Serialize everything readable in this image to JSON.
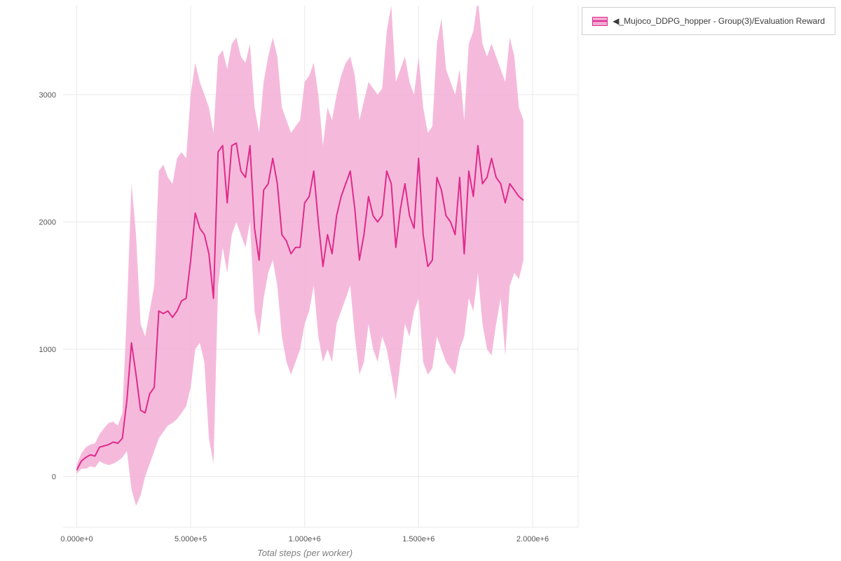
{
  "legend": {
    "label": "◀_Mujoco_DDPG_hopper - Group(3)/Evaluation Reward"
  },
  "chart_data": {
    "type": "line",
    "title": "",
    "xlabel": "Total steps (per worker)",
    "ylabel": "",
    "grid": true,
    "legend_position": "top-right",
    "xlim": [
      -60000,
      2200000
    ],
    "ylim": [
      -400,
      3700
    ],
    "x_ticks": [
      {
        "value": 0,
        "label": "0.000e+0"
      },
      {
        "value": 500000,
        "label": "5.000e+5"
      },
      {
        "value": 1000000,
        "label": "1.000e+6"
      },
      {
        "value": 1500000,
        "label": "1.500e+6"
      },
      {
        "value": 2000000,
        "label": "2.000e+6"
      }
    ],
    "y_ticks": [
      {
        "value": 0,
        "label": "0"
      },
      {
        "value": 1000,
        "label": "1000"
      },
      {
        "value": 2000,
        "label": "2000"
      },
      {
        "value": 3000,
        "label": "3000"
      }
    ],
    "colors": {
      "line": "#e02a8d",
      "band": "#f2a9d2",
      "grid": "#e9e9e9",
      "tick_text": "#555555",
      "axis_label": "#7f7f7f"
    },
    "series": [
      {
        "name": "◀_Mujoco_DDPG_hopper - Group(3)/Evaluation Reward",
        "x": [
          0,
          20000,
          40000,
          60000,
          80000,
          100000,
          120000,
          140000,
          160000,
          180000,
          200000,
          220000,
          240000,
          260000,
          280000,
          300000,
          320000,
          340000,
          360000,
          380000,
          400000,
          420000,
          440000,
          460000,
          480000,
          500000,
          520000,
          540000,
          560000,
          580000,
          600000,
          620000,
          640000,
          660000,
          680000,
          700000,
          720000,
          740000,
          760000,
          780000,
          800000,
          820000,
          840000,
          860000,
          880000,
          900000,
          920000,
          940000,
          960000,
          980000,
          1000000,
          1020000,
          1040000,
          1060000,
          1080000,
          1100000,
          1120000,
          1140000,
          1160000,
          1180000,
          1200000,
          1220000,
          1240000,
          1260000,
          1280000,
          1300000,
          1320000,
          1340000,
          1360000,
          1380000,
          1400000,
          1420000,
          1440000,
          1460000,
          1480000,
          1500000,
          1520000,
          1540000,
          1560000,
          1580000,
          1600000,
          1620000,
          1640000,
          1660000,
          1680000,
          1700000,
          1720000,
          1740000,
          1760000,
          1780000,
          1800000,
          1820000,
          1840000,
          1860000,
          1880000,
          1900000,
          1920000,
          1940000,
          1960000
        ],
        "mean": [
          50,
          120,
          150,
          170,
          160,
          230,
          240,
          250,
          270,
          260,
          300,
          600,
          1050,
          800,
          520,
          500,
          650,
          700,
          1300,
          1280,
          1300,
          1250,
          1300,
          1380,
          1400,
          1700,
          2070,
          1950,
          1900,
          1750,
          1400,
          2550,
          2600,
          2150,
          2600,
          2620,
          2400,
          2350,
          2600,
          1950,
          1700,
          2250,
          2300,
          2500,
          2300,
          1900,
          1850,
          1750,
          1800,
          1800,
          2150,
          2200,
          2400,
          2000,
          1650,
          1900,
          1750,
          2050,
          2200,
          2300,
          2400,
          2100,
          1700,
          1900,
          2200,
          2050,
          2000,
          2050,
          2400,
          2300,
          1800,
          2100,
          2300,
          2050,
          1950,
          2500,
          1900,
          1650,
          1700,
          2350,
          2250,
          2050,
          2000,
          1900,
          2350,
          1750,
          2400,
          2200,
          2600,
          2300,
          2350,
          2500,
          2350,
          2300,
          2150,
          2300,
          2250,
          2200,
          2170
        ],
        "lower": [
          20,
          60,
          60,
          80,
          70,
          120,
          100,
          90,
          100,
          120,
          150,
          200,
          -100,
          -230,
          -150,
          0,
          100,
          200,
          300,
          350,
          400,
          420,
          450,
          500,
          550,
          700,
          1000,
          1050,
          900,
          300,
          100,
          1500,
          1800,
          1600,
          1900,
          2000,
          1900,
          1800,
          2000,
          1300,
          1100,
          1400,
          1600,
          1700,
          1500,
          1100,
          900,
          800,
          900,
          1000,
          1200,
          1300,
          1500,
          1100,
          900,
          1000,
          900,
          1200,
          1300,
          1400,
          1500,
          1100,
          800,
          900,
          1200,
          1000,
          900,
          1100,
          1000,
          800,
          600,
          900,
          1200,
          1100,
          1300,
          1400,
          900,
          800,
          850,
          1100,
          1000,
          900,
          850,
          800,
          1000,
          1100,
          1400,
          1300,
          1600,
          1200,
          1000,
          950,
          1200,
          1400,
          950,
          1500,
          1600,
          1550,
          1700
        ],
        "upper": [
          90,
          180,
          230,
          250,
          260,
          330,
          380,
          420,
          430,
          400,
          500,
          1300,
          2300,
          1900,
          1200,
          1100,
          1300,
          1500,
          2400,
          2450,
          2350,
          2300,
          2500,
          2550,
          2500,
          3000,
          3250,
          3100,
          3000,
          2900,
          2700,
          3300,
          3350,
          3200,
          3400,
          3450,
          3300,
          3250,
          3400,
          2900,
          2700,
          3100,
          3300,
          3450,
          3300,
          2900,
          2800,
          2700,
          2750,
          2800,
          3100,
          3150,
          3250,
          3000,
          2600,
          2900,
          2800,
          3000,
          3150,
          3250,
          3300,
          3150,
          2800,
          2950,
          3100,
          3050,
          3000,
          3050,
          3500,
          3700,
          3100,
          3200,
          3300,
          3100,
          3000,
          3300,
          2900,
          2700,
          2750,
          3400,
          3600,
          3200,
          3100,
          3000,
          3200,
          2800,
          3400,
          3500,
          3750,
          3400,
          3300,
          3400,
          3300,
          3200,
          3100,
          3450,
          3300,
          2900,
          2800
        ]
      }
    ]
  }
}
